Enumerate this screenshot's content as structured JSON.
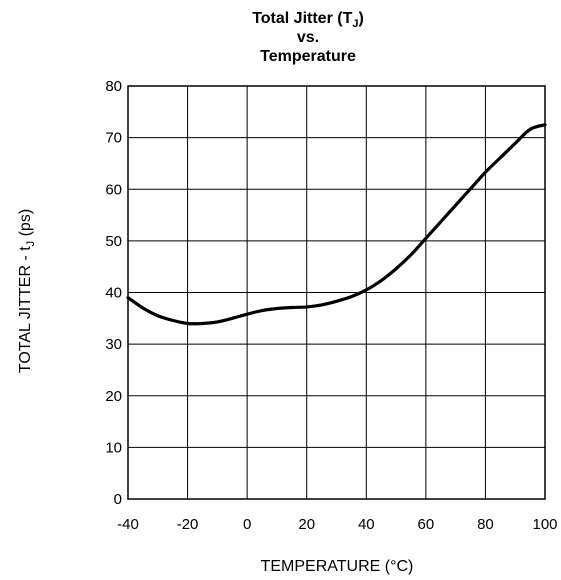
{
  "chart_data": {
    "type": "line",
    "title": {
      "line1_prefix": "Total Jitter (T",
      "line1_sub": "J",
      "line1_suffix": ")",
      "line2": "vs.",
      "line3": "Temperature"
    },
    "xlabel": "TEMPERATURE (°C)",
    "ylabel": {
      "prefix": "TOTAL JITTER - t",
      "sub": "J",
      "suffix": " (ps)"
    },
    "xlim": [
      -40,
      100
    ],
    "ylim": [
      0,
      80
    ],
    "xticks": [
      -40,
      -20,
      0,
      20,
      40,
      60,
      80,
      100
    ],
    "yticks": [
      0,
      10,
      20,
      30,
      40,
      50,
      60,
      70,
      80
    ],
    "grid": true,
    "series": [
      {
        "x": [
          -40,
          -35,
          -30,
          -25,
          -20,
          -15,
          -10,
          -5,
          0,
          5,
          10,
          15,
          20,
          25,
          30,
          35,
          40,
          45,
          50,
          55,
          60,
          65,
          70,
          75,
          80,
          85,
          90,
          95,
          100
        ],
        "y": [
          39.0,
          37.0,
          35.5,
          34.6,
          34.0,
          34.0,
          34.3,
          35.0,
          35.8,
          36.5,
          36.9,
          37.1,
          37.2,
          37.6,
          38.3,
          39.2,
          40.5,
          42.3,
          44.6,
          47.3,
          50.5,
          53.7,
          56.9,
          60.1,
          63.3,
          66.1,
          68.9,
          71.6,
          72.5
        ]
      }
    ],
    "line_color": "#000000"
  }
}
